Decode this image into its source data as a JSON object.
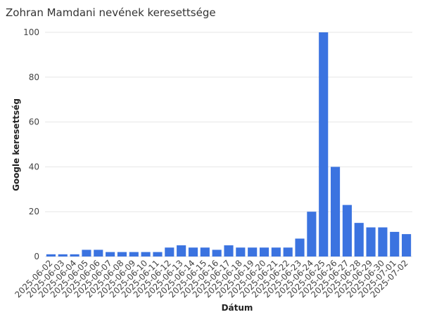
{
  "chart_data": {
    "type": "bar",
    "title": "Zohran Mamdani nevének keresettsége",
    "xlabel": "Dátum",
    "ylabel": "Google keresettség",
    "ylim": [
      0,
      100
    ],
    "yticks": [
      0,
      20,
      40,
      60,
      80,
      100
    ],
    "grid": "horizontal",
    "bar_color": "#3b73e0",
    "categories": [
      "2025-06-02",
      "2025-06-03",
      "2025-06-04",
      "2025-06-05",
      "2025-06-06",
      "2025-06-07",
      "2025-06-08",
      "2025-06-09",
      "2025-06-10",
      "2025-06-11",
      "2025-06-12",
      "2025-06-13",
      "2025-06-14",
      "2025-06-15",
      "2025-06-16",
      "2025-06-17",
      "2025-06-18",
      "2025-06-19",
      "2025-06-20",
      "2025-06-21",
      "2025-06-22",
      "2025-06-23",
      "2025-06-24",
      "2025-06-25",
      "2025-06-26",
      "2025-06-27",
      "2025-06-28",
      "2025-06-29",
      "2025-06-30",
      "2025-07-01",
      "2025-07-02"
    ],
    "values": [
      1,
      1,
      1,
      3,
      3,
      2,
      2,
      2,
      2,
      2,
      4,
      5,
      4,
      4,
      3,
      5,
      4,
      4,
      4,
      4,
      4,
      8,
      20,
      100,
      40,
      23,
      15,
      13,
      13,
      11,
      10
    ]
  }
}
